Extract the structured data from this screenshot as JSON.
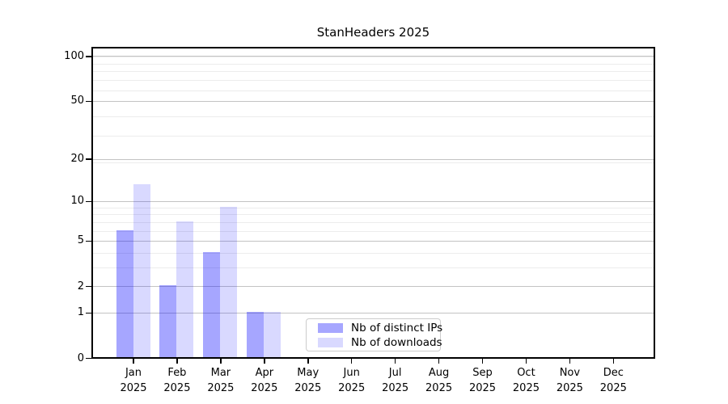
{
  "chart_data": {
    "type": "bar",
    "title": "StanHeaders 2025",
    "categories": [
      "Jan",
      "Feb",
      "Mar",
      "Apr",
      "May",
      "Jun",
      "Jul",
      "Aug",
      "Sep",
      "Oct",
      "Nov",
      "Dec"
    ],
    "year_label": "2025",
    "series": [
      {
        "name": "Nb of distinct IPs",
        "color": "rgba(0,0,255,0.35)",
        "values": [
          6,
          2,
          4,
          1,
          0,
          0,
          0,
          0,
          0,
          0,
          0,
          0
        ]
      },
      {
        "name": "Nb of downloads",
        "color": "rgba(0,0,255,0.15)",
        "values": [
          13,
          7,
          9,
          1,
          0,
          0,
          0,
          0,
          0,
          0,
          0,
          0
        ]
      }
    ],
    "y_axis": {
      "scale": "log1p",
      "tick_values": [
        0,
        1,
        2,
        5,
        10,
        20,
        50,
        100
      ],
      "minor_gridline_values": [
        3,
        4,
        6,
        7,
        8,
        9,
        19,
        29,
        39,
        59,
        69,
        79,
        89,
        99
      ],
      "range_top": 115
    },
    "legend_position": "lower center",
    "grid": true,
    "colors": {
      "major_grid": "#c3c3c3",
      "minor_grid": "#ececec",
      "spine": "#000000",
      "text": "#000000",
      "legend_border": "#cccccc",
      "background": "#ffffff"
    }
  }
}
